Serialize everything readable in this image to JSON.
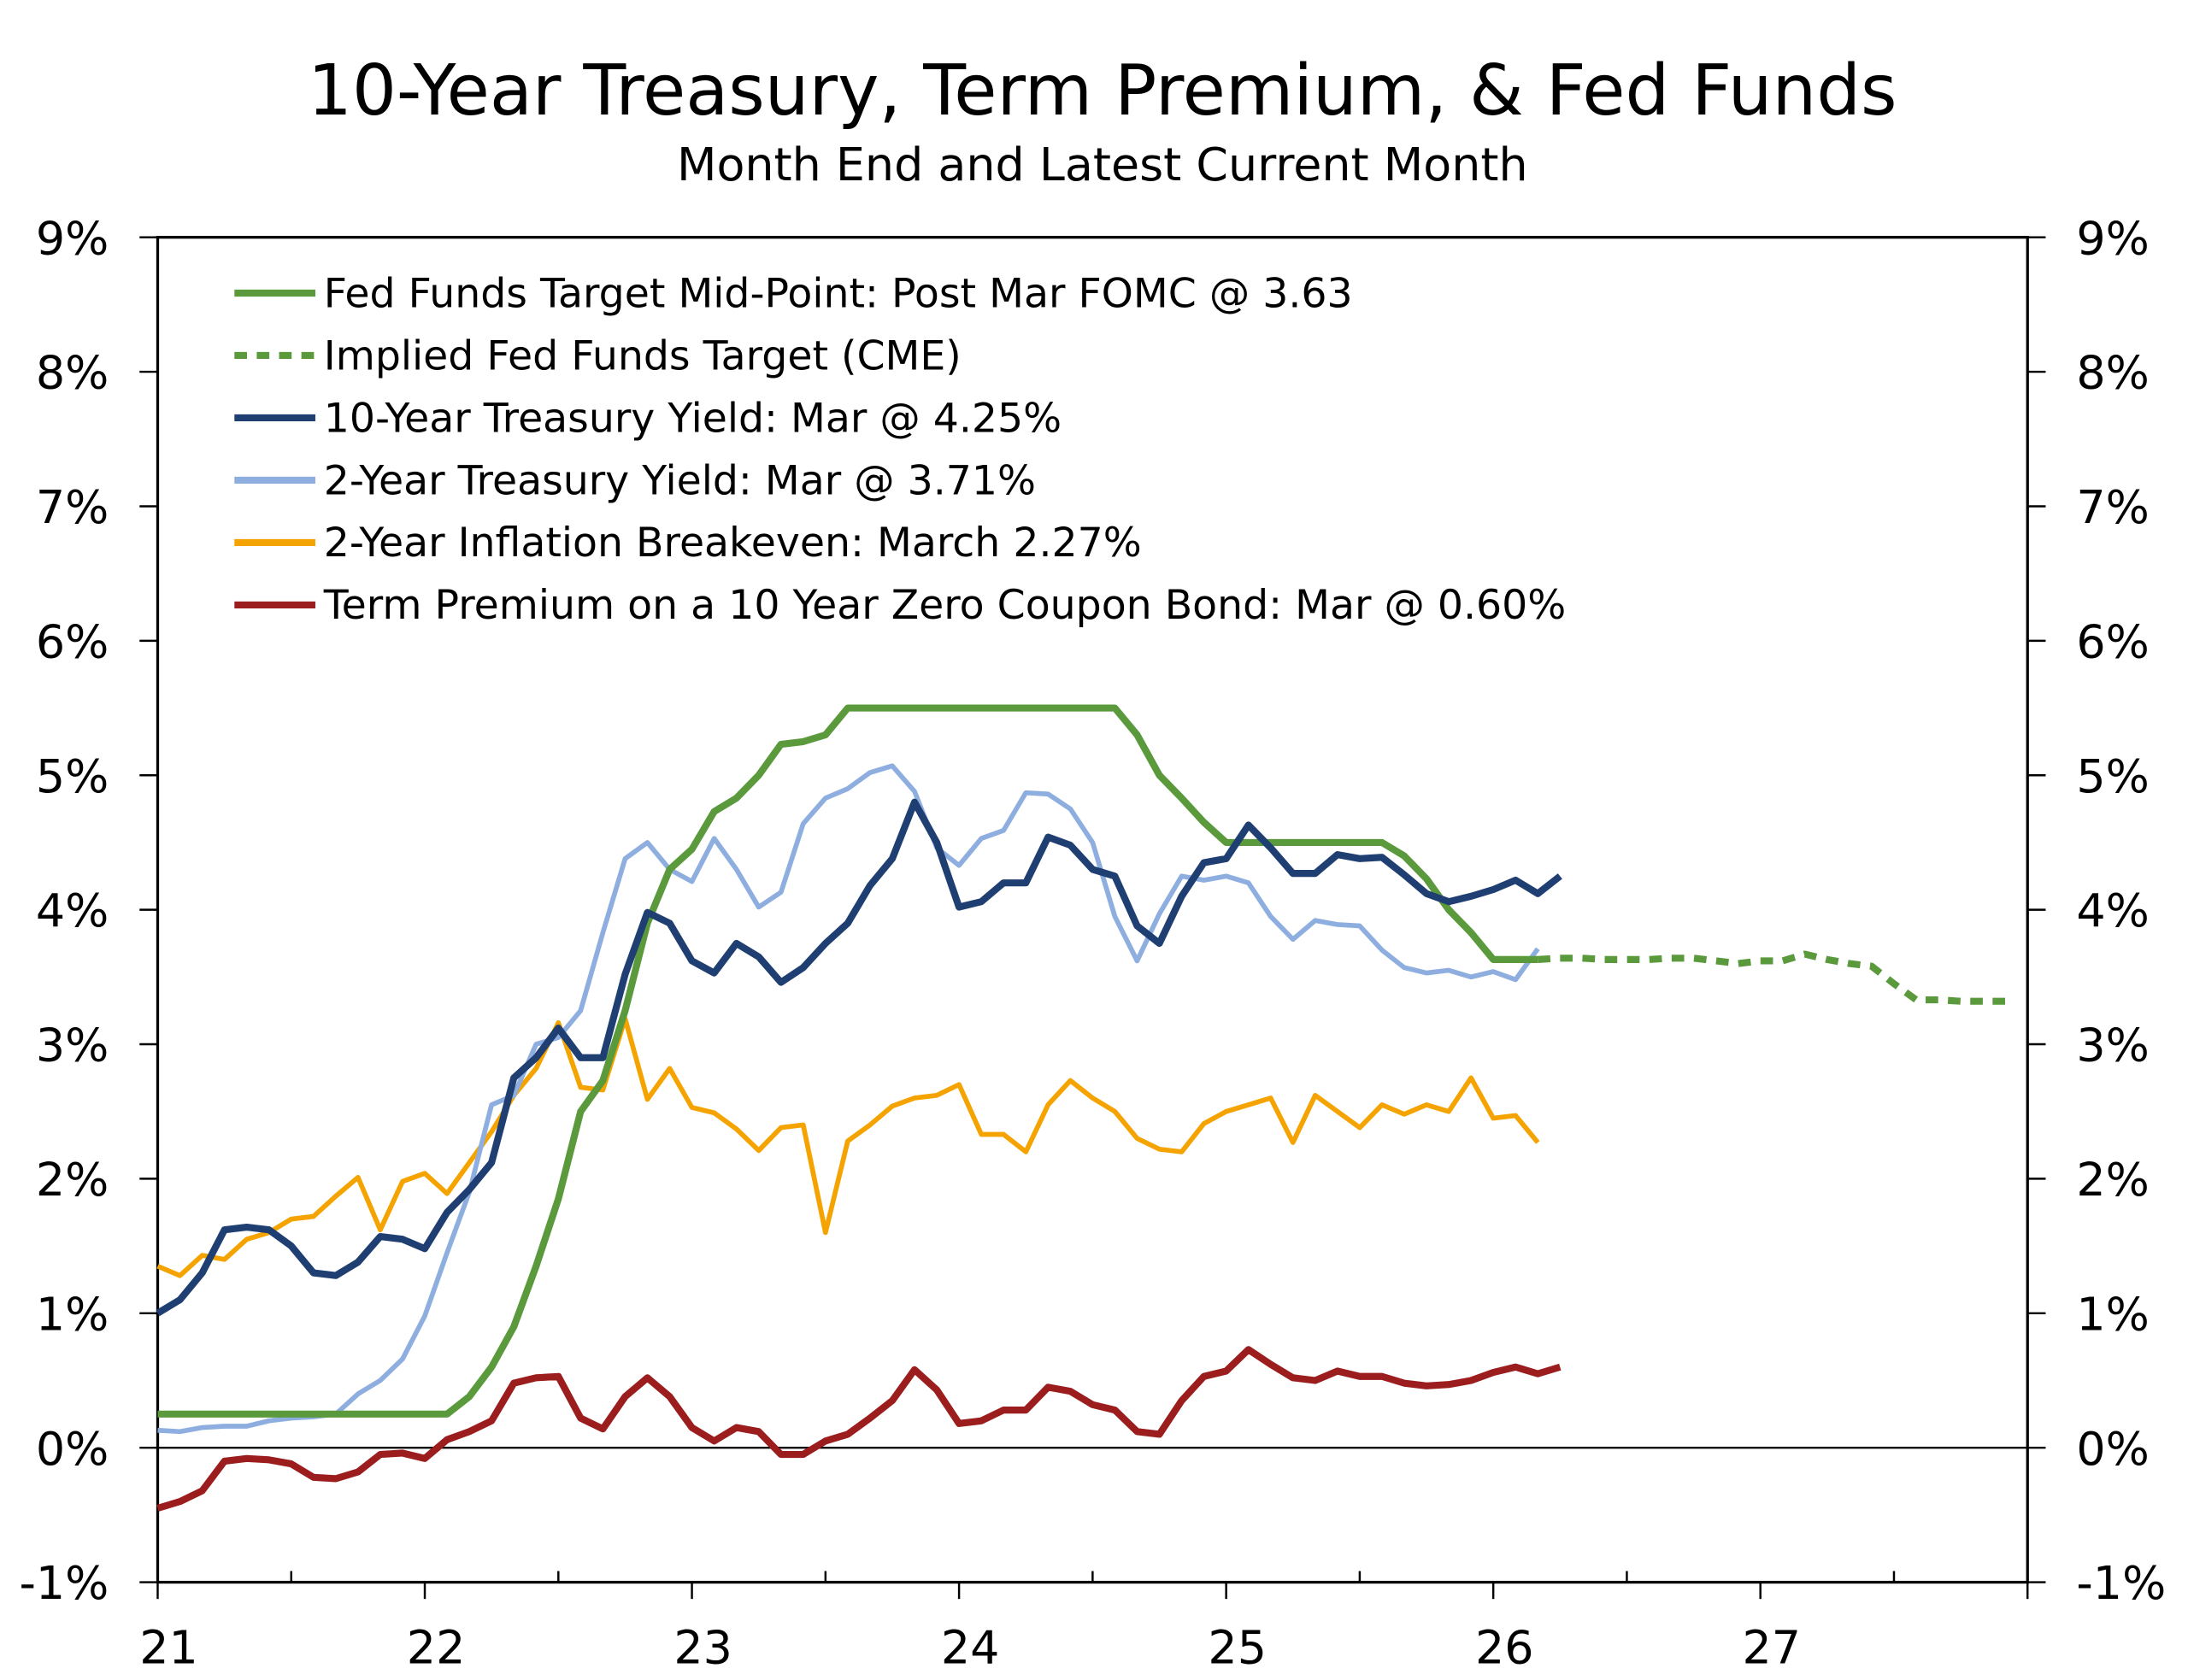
{
  "chart_data": {
    "type": "line",
    "title": "10-Year Treasury, Term Premium, & Fed Funds",
    "subtitle": "Month End and Latest Current Month",
    "xlabel": "",
    "ylabel": "",
    "xlim": [
      21,
      28
    ],
    "ylim": [
      -1,
      9
    ],
    "x_ticks": [
      "21",
      "22",
      "23",
      "24",
      "25",
      "26",
      "27"
    ],
    "y_ticks": [
      "-1%",
      "0%",
      "1%",
      "2%",
      "3%",
      "4%",
      "5%",
      "6%",
      "7%",
      "8%",
      "9%"
    ],
    "grid": false,
    "legend_position": "top-left",
    "x_start": "2021-01",
    "series": [
      {
        "name": "Fed Funds Target Mid-Point: Post Mar FOMC @ 3.63",
        "color": "#5b9a3c",
        "style": "solid",
        "values": [
          0.25,
          0.25,
          0.25,
          0.25,
          0.25,
          0.25,
          0.25,
          0.25,
          0.25,
          0.25,
          0.25,
          0.25,
          0.25,
          0.25,
          0.38,
          0.6,
          0.9,
          1.35,
          1.85,
          2.5,
          2.73,
          3.25,
          3.9,
          4.3,
          4.45,
          4.73,
          4.83,
          5.0,
          5.23,
          5.25,
          5.3,
          5.5,
          5.5,
          5.5,
          5.5,
          5.5,
          5.5,
          5.5,
          5.5,
          5.5,
          5.5,
          5.5,
          5.5,
          5.5,
          5.3,
          5.0,
          4.83,
          4.65,
          4.5,
          4.5,
          4.5,
          4.5,
          4.5,
          4.5,
          4.5,
          4.5,
          4.4,
          4.23,
          4.0,
          3.83,
          3.63,
          3.63,
          3.63
        ]
      },
      {
        "name": "Implied Fed Funds Target  (CME)",
        "color": "#5b9a3c",
        "style": "dashed",
        "x_start": "2026-03",
        "values": [
          3.63,
          3.64,
          3.64,
          3.63,
          3.63,
          3.63,
          3.64,
          3.64,
          3.62,
          3.6,
          3.62,
          3.62,
          3.67,
          3.63,
          3.6,
          3.58,
          3.45,
          3.33,
          3.33,
          3.32,
          3.32,
          3.32
        ]
      },
      {
        "name": "10-Year Treasury Yield: Mar @ 4.25%",
        "color": "#1f3f73",
        "style": "solid",
        "values": [
          1.0,
          1.1,
          1.3,
          1.62,
          1.64,
          1.62,
          1.5,
          1.3,
          1.28,
          1.38,
          1.57,
          1.55,
          1.48,
          1.75,
          1.92,
          2.12,
          2.75,
          2.9,
          3.12,
          2.9,
          2.9,
          3.52,
          3.98,
          3.9,
          3.62,
          3.53,
          3.75,
          3.65,
          3.46,
          3.57,
          3.75,
          3.9,
          4.18,
          4.38,
          4.8,
          4.5,
          4.02,
          4.06,
          4.2,
          4.2,
          4.54,
          4.48,
          4.3,
          4.25,
          3.88,
          3.75,
          4.1,
          4.35,
          4.38,
          4.63,
          4.46,
          4.27,
          4.27,
          4.41,
          4.38,
          4.39,
          4.26,
          4.12,
          4.06,
          4.1,
          4.15,
          4.22,
          4.12,
          4.25
        ]
      },
      {
        "name": "2-Year Treasury Yield: Mar @ 3.71%",
        "color": "#8eaee0",
        "style": "solid",
        "values": [
          0.13,
          0.12,
          0.15,
          0.16,
          0.16,
          0.2,
          0.22,
          0.23,
          0.25,
          0.4,
          0.5,
          0.66,
          0.98,
          1.45,
          1.9,
          2.55,
          2.62,
          3.0,
          3.05,
          3.25,
          3.83,
          4.38,
          4.5,
          4.3,
          4.21,
          4.53,
          4.3,
          4.02,
          4.13,
          4.64,
          4.83,
          4.9,
          5.02,
          5.07,
          4.88,
          4.46,
          4.33,
          4.53,
          4.59,
          4.87,
          4.86,
          4.75,
          4.5,
          3.95,
          3.62,
          3.97,
          4.25,
          4.22,
          4.25,
          4.2,
          3.95,
          3.78,
          3.92,
          3.89,
          3.88,
          3.7,
          3.57,
          3.53,
          3.55,
          3.5,
          3.54,
          3.48,
          3.71
        ]
      },
      {
        "name": "2-Year Inflation Breakeven: March 2.27%",
        "color": "#f5a300",
        "style": "solid",
        "values": [
          1.35,
          1.28,
          1.43,
          1.4,
          1.55,
          1.6,
          1.7,
          1.72,
          1.87,
          2.01,
          1.62,
          1.98,
          2.04,
          1.89,
          2.12,
          2.35,
          2.62,
          2.82,
          3.16,
          2.68,
          2.66,
          3.19,
          2.59,
          2.82,
          2.53,
          2.49,
          2.37,
          2.21,
          2.38,
          2.4,
          1.6,
          2.28,
          2.4,
          2.54,
          2.6,
          2.62,
          2.7,
          2.33,
          2.33,
          2.2,
          2.55,
          2.73,
          2.6,
          2.5,
          2.3,
          2.22,
          2.2,
          2.41,
          2.5,
          2.55,
          2.6,
          2.27,
          2.62,
          2.5,
          2.38,
          2.55,
          2.48,
          2.55,
          2.5,
          2.75,
          2.45,
          2.47,
          2.27
        ]
      },
      {
        "name": "Term Premium on a 10 Year Zero Coupon Bond: Mar @ 0.60%",
        "color": "#9b1d1d",
        "style": "solid",
        "values": [
          -0.45,
          -0.4,
          -0.32,
          -0.1,
          -0.08,
          -0.09,
          -0.12,
          -0.22,
          -0.23,
          -0.18,
          -0.05,
          -0.04,
          -0.08,
          0.06,
          0.12,
          0.2,
          0.48,
          0.52,
          0.53,
          0.22,
          0.14,
          0.38,
          0.52,
          0.38,
          0.15,
          0.05,
          0.15,
          0.12,
          -0.05,
          -0.05,
          0.05,
          0.1,
          0.22,
          0.35,
          0.58,
          0.43,
          0.18,
          0.2,
          0.28,
          0.28,
          0.45,
          0.42,
          0.32,
          0.28,
          0.12,
          0.1,
          0.35,
          0.53,
          0.57,
          0.73,
          0.62,
          0.52,
          0.5,
          0.57,
          0.53,
          0.53,
          0.48,
          0.46,
          0.47,
          0.5,
          0.56,
          0.6,
          0.55,
          0.6
        ]
      }
    ]
  }
}
